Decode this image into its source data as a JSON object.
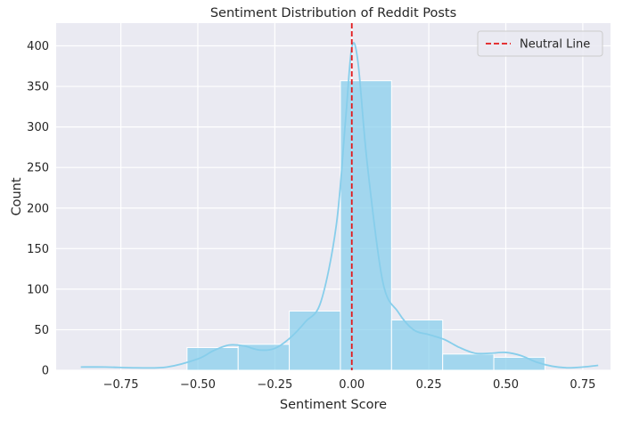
{
  "chart_data": {
    "type": "histogram",
    "title": "Sentiment Distribution of Reddit Posts",
    "xlabel": "Sentiment Score",
    "ylabel": "Count",
    "xlim": [
      -0.96,
      0.84
    ],
    "ylim": [
      0,
      428
    ],
    "x_ticks": [
      -0.75,
      -0.5,
      -0.25,
      0.0,
      0.25,
      0.5,
      0.75
    ],
    "x_tick_labels": [
      "−0.75",
      "−0.50",
      "−0.25",
      "0.00",
      "0.25",
      "0.50",
      "0.75"
    ],
    "y_ticks": [
      0,
      50,
      100,
      150,
      200,
      250,
      300,
      350,
      400
    ],
    "y_tick_labels": [
      "0",
      "50",
      "100",
      "150",
      "200",
      "250",
      "300",
      "350",
      "400"
    ],
    "bins": [
      {
        "x0": -0.535,
        "x1": -0.369,
        "count": 28
      },
      {
        "x0": -0.369,
        "x1": -0.203,
        "count": 32
      },
      {
        "x0": -0.203,
        "x1": -0.037,
        "count": 73
      },
      {
        "x0": -0.037,
        "x1": 0.129,
        "count": 357
      },
      {
        "x0": 0.129,
        "x1": 0.295,
        "count": 62
      },
      {
        "x0": 0.295,
        "x1": 0.461,
        "count": 20
      },
      {
        "x0": 0.461,
        "x1": 0.627,
        "count": 16
      }
    ],
    "kde": {
      "x": [
        -0.88,
        -0.8,
        -0.7,
        -0.6,
        -0.5,
        -0.45,
        -0.4,
        -0.35,
        -0.3,
        -0.25,
        -0.2,
        -0.15,
        -0.1,
        -0.05,
        -0.02,
        0.0,
        0.02,
        0.05,
        0.1,
        0.15,
        0.2,
        0.25,
        0.3,
        0.35,
        0.4,
        0.45,
        0.5,
        0.55,
        0.6,
        0.65,
        0.7,
        0.75,
        0.8
      ],
      "y": [
        4,
        4,
        3,
        4,
        14,
        24,
        31,
        30,
        25,
        27,
        40,
        60,
        85,
        180,
        310,
        398,
        380,
        255,
        110,
        72,
        50,
        44,
        38,
        28,
        21,
        21,
        22,
        18,
        10,
        5,
        3,
        4,
        6
      ]
    },
    "neutral_line": {
      "x": 0.0,
      "label": "Neutral Line",
      "color": "#e31a1c"
    },
    "bar_color": "#87ceeb",
    "kde_color": "#87ceeb",
    "background_color": "#eaeaf2",
    "grid": true,
    "legend_position": "top-right"
  }
}
